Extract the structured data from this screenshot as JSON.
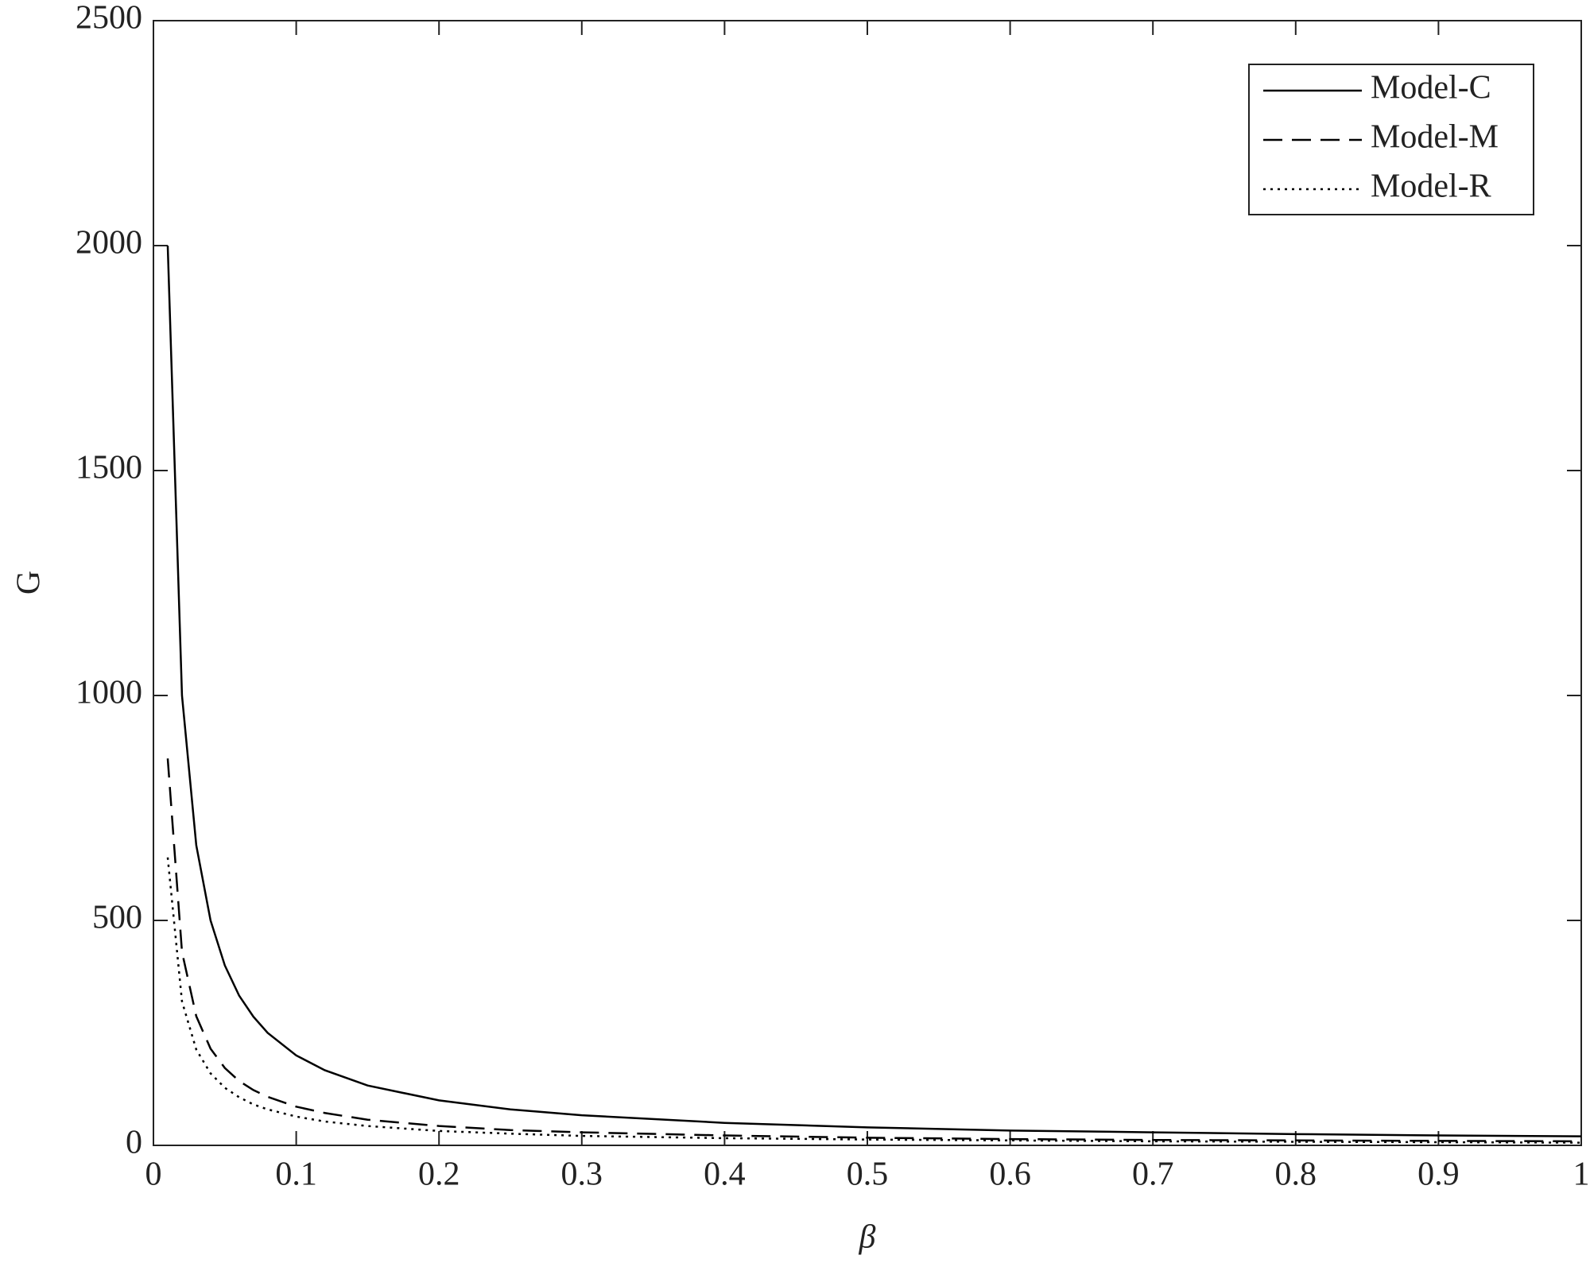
{
  "chart_data": {
    "type": "line",
    "xlabel": "β",
    "ylabel": "G",
    "x": [
      0.01,
      0.02,
      0.03,
      0.04,
      0.05,
      0.06,
      0.07,
      0.08,
      0.1,
      0.12,
      0.15,
      0.2,
      0.25,
      0.3,
      0.4,
      0.5,
      0.6,
      0.7,
      0.8,
      0.9,
      1.0
    ],
    "series": [
      {
        "name": "Model-C",
        "color": "#000000",
        "style": "solid",
        "values": [
          2000,
          1000,
          667,
          500,
          400,
          333,
          286,
          250,
          200,
          167,
          133,
          100,
          80,
          67,
          50,
          40,
          33,
          29,
          25,
          22,
          20
        ]
      },
      {
        "name": "Model-M",
        "color": "#000000",
        "style": "dashed",
        "values": [
          860,
          430,
          287,
          215,
          172,
          143,
          123,
          108,
          86,
          72,
          57,
          43,
          34,
          29,
          22,
          17,
          14,
          12,
          11,
          10,
          9
        ]
      },
      {
        "name": "Model-R",
        "color": "#000000",
        "style": "dotted",
        "values": [
          640,
          320,
          213,
          160,
          128,
          107,
          91,
          80,
          64,
          53,
          43,
          32,
          26,
          21,
          16,
          13,
          11,
          9,
          8,
          7,
          6
        ]
      }
    ],
    "xlim": [
      0,
      1
    ],
    "ylim": [
      0,
      2500
    ],
    "xticks": [
      0,
      0.1,
      0.2,
      0.3,
      0.4,
      0.5,
      0.6,
      0.7,
      0.8,
      0.9,
      1
    ],
    "yticks": [
      0,
      500,
      1000,
      1500,
      2000,
      2500
    ],
    "legend": "upper right"
  }
}
